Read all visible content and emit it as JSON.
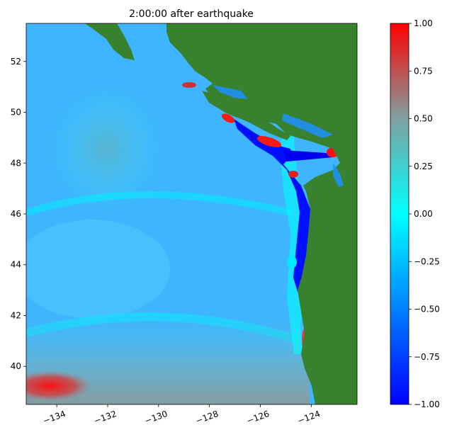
{
  "chart_data": [
    {
      "type": "heatmap",
      "title": "2:00:00 after earthquake",
      "xlabel": "",
      "ylabel": "",
      "xlim": [
        -135.2,
        -122.2
      ],
      "ylim": [
        38.5,
        53.5
      ],
      "x_ticks": [
        -134,
        -132,
        -130,
        -128,
        -126,
        -124
      ],
      "x_tick_labels": [
        "−134",
        "−132",
        "−130",
        "−128",
        "−126",
        "−124"
      ],
      "y_ticks": [
        40,
        42,
        44,
        46,
        48,
        50,
        52
      ],
      "y_tick_labels": [
        "40",
        "42",
        "44",
        "46",
        "48",
        "50",
        "52"
      ],
      "grid": false,
      "land_color": "#38812f",
      "colormap": [
        {
          "value": -1.0,
          "color": "#0000ff"
        },
        {
          "value": -0.5,
          "color": "#0080ff"
        },
        {
          "value": 0.0,
          "color": "#00ffff"
        },
        {
          "value": 0.5,
          "color": "#80a0a0"
        },
        {
          "value": 1.0,
          "color": "#ff0000"
        }
      ],
      "features": {
        "negative_band_along_coast": [
          [
            -124.2,
            40.5
          ],
          [
            -124.2,
            44
          ],
          [
            -124.1,
            46.3
          ],
          [
            -125.3,
            48.6
          ],
          [
            -126.8,
            49.6
          ]
        ],
        "positive_patches": [
          [
            -126.5,
            48.9
          ],
          [
            -127.5,
            49.8
          ],
          [
            -125,
            47.4
          ],
          [
            -129,
            51
          ],
          [
            -122.8,
            48.2
          ],
          [
            -134.5,
            39.3
          ],
          [
            -124.1,
            41
          ]
        ]
      }
    },
    {
      "type": "colorbar",
      "range": [
        -1.0,
        1.0
      ],
      "ticks": [
        -1.0,
        -0.75,
        -0.5,
        -0.25,
        0.0,
        0.25,
        0.5,
        0.75,
        1.0
      ],
      "tick_labels": [
        "−1.00",
        "−0.75",
        "−0.50",
        "−0.25",
        "0.00",
        "0.25",
        "0.50",
        "0.75",
        "1.00"
      ]
    }
  ]
}
